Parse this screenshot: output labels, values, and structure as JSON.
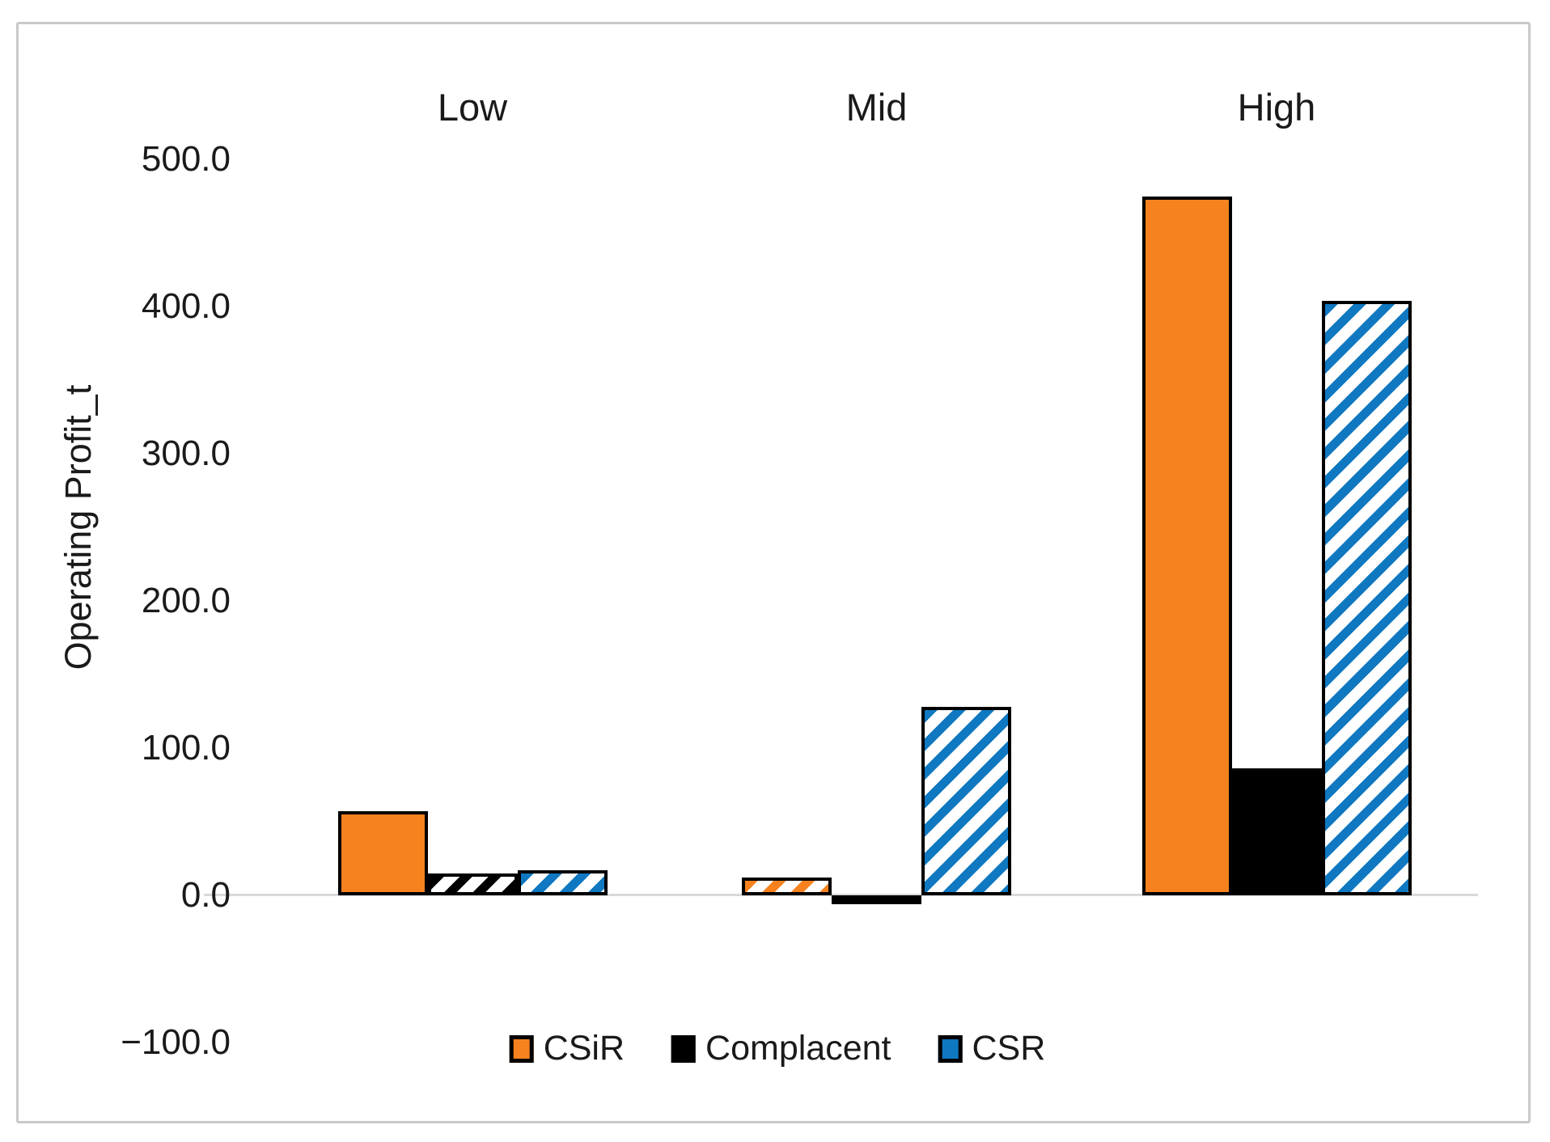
{
  "chart_data": {
    "type": "bar",
    "title": "",
    "categories": [
      "Low",
      "Mid",
      "High"
    ],
    "series": [
      {
        "name": "CSiR",
        "color": "#F6821F",
        "values": [
          57,
          12,
          475
        ],
        "patterns": [
          "solid",
          "diagonal-stripes",
          "solid"
        ]
      },
      {
        "name": "Complacent",
        "color": "#000000",
        "values": [
          15,
          -6,
          86
        ],
        "patterns": [
          "diagonal-stripes",
          "solid",
          "solid"
        ]
      },
      {
        "name": "CSR",
        "color": "#0F78C1",
        "values": [
          17,
          128,
          404
        ],
        "patterns": [
          "diagonal-stripes",
          "diagonal-stripes",
          "diagonal-stripes"
        ]
      }
    ],
    "xlabel": "",
    "ylabel": "Operating Profit_t",
    "ylim": [
      -100,
      500
    ],
    "ytick_labels": [
      "500.0",
      "400.0",
      "300.0",
      "200.0",
      "100.0",
      "0.0",
      "−100.0"
    ],
    "ytick_values": [
      500,
      400,
      300,
      200,
      100,
      0,
      -100
    ],
    "grid": false,
    "legend_position": "bottom",
    "category_labels_position": "top",
    "bar_outline_color": "#000000",
    "axis_line_color": "#d9d9d9",
    "hatch_background": "#ffffff"
  }
}
